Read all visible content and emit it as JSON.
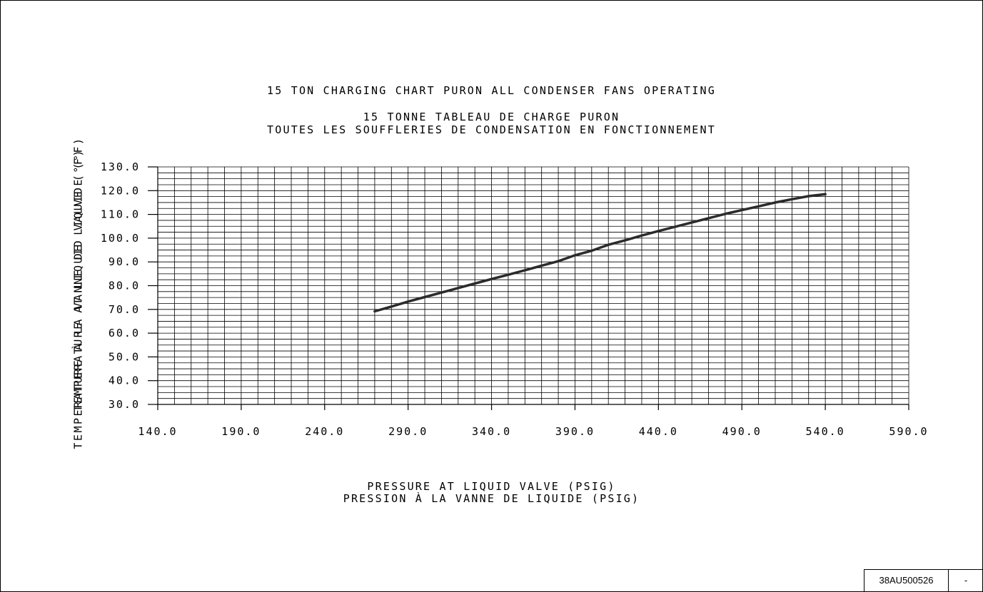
{
  "chart_data": {
    "type": "line",
    "title": "15 TON CHARGING CHART PURON ALL CONDENSER FANS OPERATING",
    "subtitle_line1": "15 TONNE TABLEAU DE CHARGE PURON",
    "subtitle_line2": "TOUTES LES SOUFFLERIES DE CONDENSATION EN FONCTIONNEMENT",
    "xlabel_line1": "PRESSURE AT LIQUID VALVE (PSIG)",
    "xlabel_line2": "PRESSION À LA VANNE DE LIQUIDE (PSIG)",
    "ylabel_line1": "TEMPERATURE AT LIQUID VALVE (°F)",
    "ylabel_line2": "TEMPERATURE À LA VANNE DE LIQUIDE (°F)",
    "xlim": [
      140,
      590
    ],
    "ylim": [
      30,
      130
    ],
    "x_ticks": [
      "140.0",
      "190.0",
      "240.0",
      "290.0",
      "340.0",
      "390.0",
      "440.0",
      "490.0",
      "540.0",
      "590.0"
    ],
    "y_ticks": [
      "30.0",
      "40.0",
      "50.0",
      "60.0",
      "70.0",
      "80.0",
      "90.0",
      "100.0",
      "110.0",
      "120.0",
      "130.0"
    ],
    "grid": true,
    "legend": "none",
    "series": [
      {
        "color": "#2b2b2b",
        "x": [
          270,
          280,
          290,
          300,
          310,
          320,
          330,
          340,
          350,
          360,
          370,
          380,
          390,
          400,
          410,
          420,
          430,
          440,
          450,
          460,
          470,
          480,
          490,
          500,
          510,
          520,
          530,
          540
        ],
        "y": [
          69.2,
          71.2,
          73.3,
          75.2,
          77.1,
          79.0,
          80.9,
          82.8,
          84.6,
          86.5,
          88.4,
          90.3,
          92.8,
          94.7,
          97.2,
          99.1,
          101.1,
          103.0,
          104.8,
          106.6,
          108.4,
          110.2,
          111.8,
          113.4,
          115.0,
          116.4,
          117.7,
          118.5
        ]
      }
    ]
  },
  "footer": {
    "part_number": "38AU500526",
    "revision": "-"
  }
}
